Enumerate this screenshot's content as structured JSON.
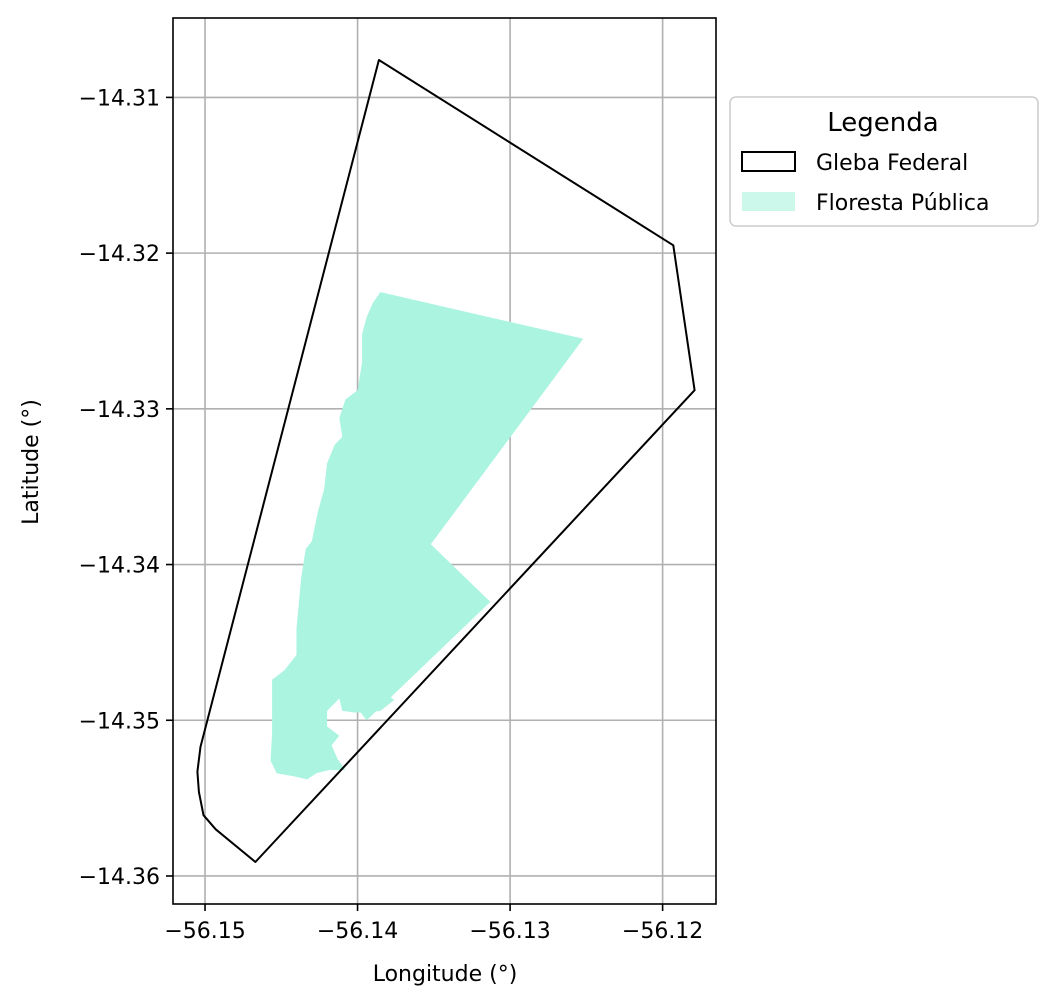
{
  "chart_data": {
    "type": "map",
    "xlabel": "Longitude (°)",
    "ylabel": "Latitude (°)",
    "xlim": [
      -56.1521,
      -56.1165
    ],
    "ylim": [
      -14.3618,
      -14.3049
    ],
    "xticks": [
      -56.15,
      -56.14,
      -56.13,
      -56.12
    ],
    "xtick_labels": [
      "−56.15",
      "−56.14",
      "−56.13",
      "−56.12"
    ],
    "yticks": [
      -14.31,
      -14.32,
      -14.33,
      -14.34,
      -14.35,
      -14.36
    ],
    "ytick_labels": [
      "−14.31",
      "−14.32",
      "−14.33",
      "−14.34",
      "−14.35",
      "−14.36"
    ],
    "grid": true,
    "legend": {
      "title": "Legenda",
      "placement": "outside right, top",
      "entries": [
        {
          "label": "Gleba Federal",
          "style": "outline",
          "color": "#000000"
        },
        {
          "label": "Floresta Pública",
          "style": "fill",
          "color": "#aaf4e0"
        }
      ]
    },
    "layers": [
      {
        "name": "Gleba Federal",
        "style": "outline",
        "stroke": "#000000",
        "coordinates": [
          [
            -56.1386,
            -14.3076
          ],
          [
            -56.1193,
            -14.3195
          ],
          [
            -56.1179,
            -14.3288
          ],
          [
            -56.1467,
            -14.3591
          ],
          [
            -56.1493,
            -14.357
          ],
          [
            -56.1501,
            -14.3561
          ],
          [
            -56.1504,
            -14.3546
          ],
          [
            -56.1505,
            -14.3533
          ],
          [
            -56.1503,
            -14.3517
          ],
          [
            -56.1386,
            -14.3076
          ]
        ]
      },
      {
        "name": "Floresta Pública",
        "style": "fill",
        "fill": "#aaf4e0",
        "coordinates": [
          [
            -56.1385,
            -14.3225
          ],
          [
            -56.1252,
            -14.3255
          ],
          [
            -56.1352,
            -14.3387
          ],
          [
            -56.1313,
            -14.3424
          ],
          [
            -56.1394,
            -14.35
          ],
          [
            -56.1398,
            -14.3495
          ],
          [
            -56.1393,
            -14.3484
          ],
          [
            -56.138,
            -14.3484
          ],
          [
            -56.1376,
            -14.3487
          ],
          [
            -56.1385,
            -14.3494
          ],
          [
            -56.1394,
            -14.3495
          ],
          [
            -56.1402,
            -14.3495
          ],
          [
            -56.141,
            -14.3494
          ],
          [
            -56.1412,
            -14.3486
          ],
          [
            -56.142,
            -14.3494
          ],
          [
            -56.142,
            -14.3504
          ],
          [
            -56.1412,
            -14.351
          ],
          [
            -56.1417,
            -14.3516
          ],
          [
            -56.1413,
            -14.3525
          ],
          [
            -56.1408,
            -14.3532
          ],
          [
            -56.1419,
            -14.3532
          ],
          [
            -56.1427,
            -14.3534
          ],
          [
            -56.1433,
            -14.3538
          ],
          [
            -56.1442,
            -14.3536
          ],
          [
            -56.1453,
            -14.3534
          ],
          [
            -56.1457,
            -14.3526
          ],
          [
            -56.1456,
            -14.3508
          ],
          [
            -56.1456,
            -14.3474
          ],
          [
            -56.1448,
            -14.3468
          ],
          [
            -56.144,
            -14.3458
          ],
          [
            -56.144,
            -14.3441
          ],
          [
            -56.1437,
            -14.3409
          ],
          [
            -56.1434,
            -14.339
          ],
          [
            -56.143,
            -14.3385
          ],
          [
            -56.1426,
            -14.3366
          ],
          [
            -56.1422,
            -14.3352
          ],
          [
            -56.142,
            -14.3335
          ],
          [
            -56.1415,
            -14.3323
          ],
          [
            -56.141,
            -14.3318
          ],
          [
            -56.1412,
            -14.3306
          ],
          [
            -56.1408,
            -14.3294
          ],
          [
            -56.14,
            -14.3288
          ],
          [
            -56.1397,
            -14.327
          ],
          [
            -56.1397,
            -14.3252
          ],
          [
            -56.1394,
            -14.3241
          ],
          [
            -56.139,
            -14.3232
          ],
          [
            -56.1385,
            -14.3225
          ]
        ]
      }
    ]
  }
}
